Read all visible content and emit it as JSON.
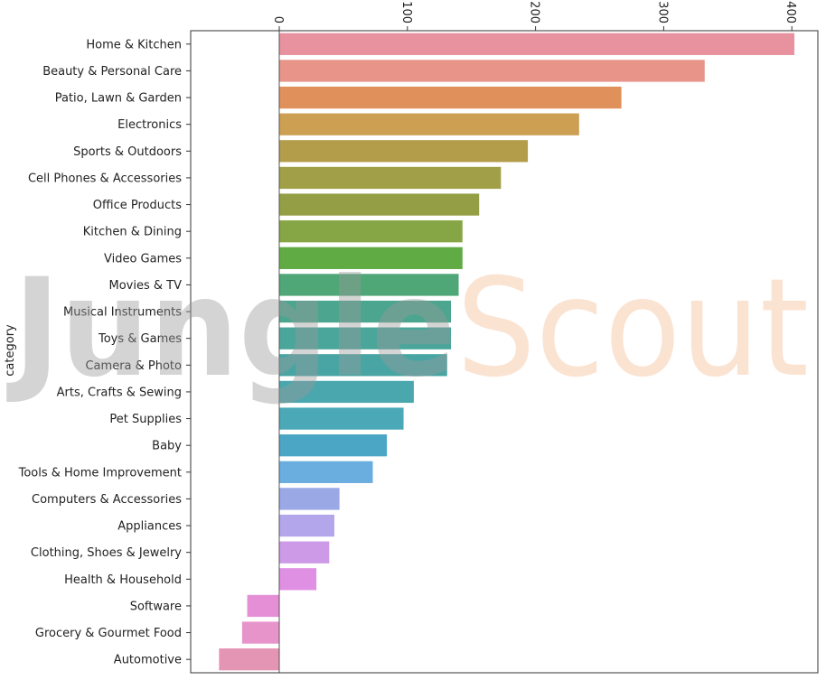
{
  "chart_data": {
    "type": "bar",
    "orientation": "horizontal",
    "ylabel": "category",
    "xlabel": "",
    "xlim": [
      -70,
      405
    ],
    "xticks": [
      0,
      100,
      200,
      300,
      400
    ],
    "xtick_rotation": 90,
    "xaxis_position": "top",
    "grid": false,
    "categories": [
      "Home & Kitchen",
      "Beauty & Personal Care",
      "Patio, Lawn & Garden",
      "Electronics",
      "Sports & Outdoors",
      "Cell Phones & Accessories",
      "Office Products",
      "Kitchen & Dining",
      "Video Games",
      "Movies & TV",
      "Musical Instruments",
      "Toys & Games",
      "Camera & Photo",
      "Arts, Crafts & Sewing",
      "Pet Supplies",
      "Baby",
      "Tools & Home Improvement",
      "Computers & Accessories",
      "Appliances",
      "Clothing, Shoes & Jewelry",
      "Health & Household",
      "Software",
      "Grocery & Gourmet Food",
      "Automotive"
    ],
    "values": [
      402,
      332,
      267,
      234,
      194,
      173,
      156,
      143,
      143,
      140,
      134,
      134,
      131,
      105,
      97,
      84,
      73,
      47,
      43,
      39,
      29,
      -25,
      -29,
      -47
    ],
    "colors": [
      "#e8929f",
      "#e89489",
      "#e0905a",
      "#cc9f53",
      "#b39c4a",
      "#a19f47",
      "#949f45",
      "#86a544",
      "#60ab44",
      "#4fa677",
      "#4ca58f",
      "#4aa69a",
      "#48a5a3",
      "#49a7ad",
      "#4aa8b7",
      "#4ba5c4",
      "#6aaee0",
      "#9aa8e6",
      "#b3a6ea",
      "#cc9ae6",
      "#e090e3",
      "#e58fd6",
      "#e794cb",
      "#e595b4"
    ]
  },
  "watermark": {
    "word1": "Jungle",
    "word2": "Scout"
  }
}
